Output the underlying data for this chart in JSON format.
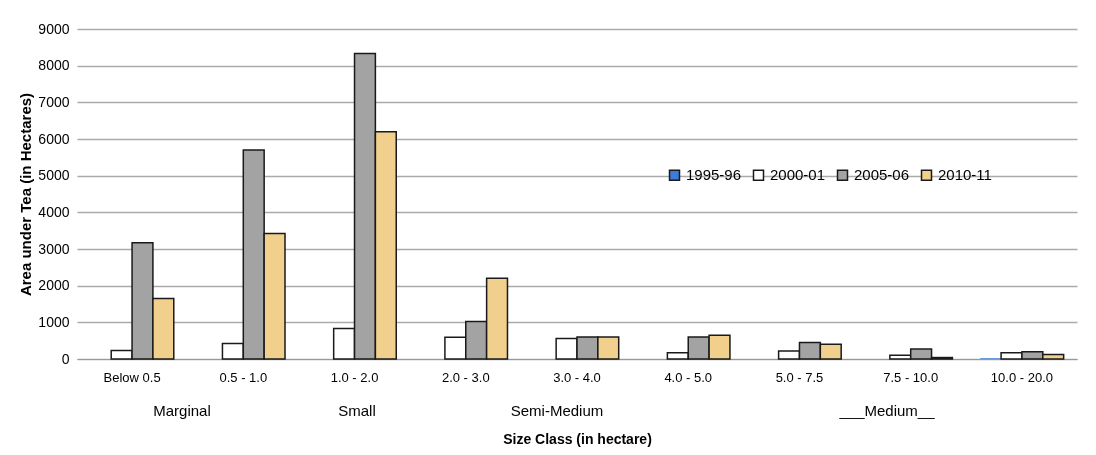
{
  "chart_data": {
    "type": "bar",
    "xlabel": "Size Class (in hectare)",
    "ylabel": "Area under Tea (in Hectares)",
    "categories": [
      "Below 0.5",
      "0.5 - 1.0",
      "1.0 - 2.0",
      "2.0 - 3.0",
      "3.0 - 4.0",
      "4.0 - 5.0",
      "5.0 - 7.5",
      "7.5 - 10.0",
      "10.0 - 20.0"
    ],
    "series": [
      {
        "name": "1995-96",
        "color": "#3b7dd8",
        "values": [
          0,
          0,
          0,
          0,
          0,
          0,
          0,
          0,
          20
        ]
      },
      {
        "name": "2000-01",
        "color": "#ffffff",
        "values": [
          230,
          420,
          830,
          590,
          560,
          170,
          220,
          100,
          170
        ]
      },
      {
        "name": "2005-06",
        "color": "#a3a3a3",
        "values": [
          3170,
          5700,
          8330,
          1020,
          600,
          600,
          450,
          270,
          200
        ]
      },
      {
        "name": "2010-11",
        "color": "#f0d08c",
        "values": [
          1650,
          3420,
          6200,
          2200,
          600,
          650,
          400,
          40,
          120
        ]
      }
    ],
    "ylim": [
      0,
      9000
    ],
    "yticks": [
      0,
      1000,
      2000,
      3000,
      4000,
      5000,
      6000,
      7000,
      8000,
      9000
    ],
    "grid": "y",
    "legend": "right",
    "annotations": [
      "Marginal",
      "Small",
      "Semi-Medium",
      "___Medium__"
    ]
  }
}
